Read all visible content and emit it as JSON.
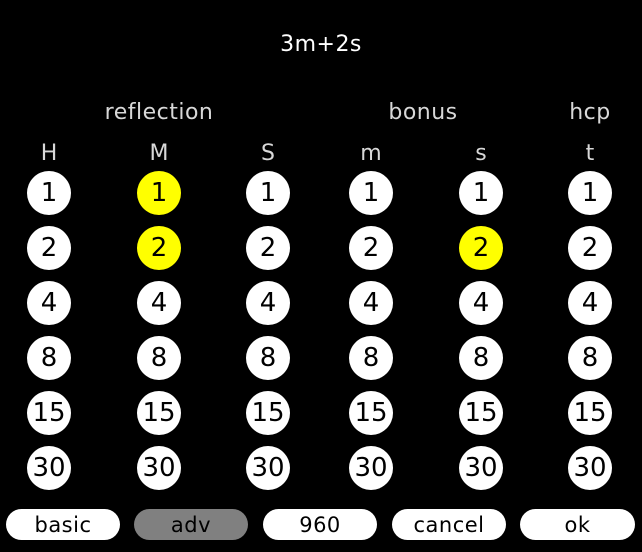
{
  "title": "3m+2s",
  "groups": [
    {
      "label": "reflection"
    },
    {
      "label": "bonus"
    },
    {
      "label": "hcp"
    }
  ],
  "columns": [
    {
      "label": "H",
      "options": [
        "1",
        "2",
        "4",
        "8",
        "15",
        "30"
      ],
      "selected": null
    },
    {
      "label": "M",
      "options": [
        "1",
        "2",
        "4",
        "8",
        "15",
        "30"
      ],
      "selected": [
        0,
        1
      ]
    },
    {
      "label": "S",
      "options": [
        "1",
        "2",
        "4",
        "8",
        "15",
        "30"
      ],
      "selected": null
    },
    {
      "label": "m",
      "options": [
        "1",
        "2",
        "4",
        "8",
        "15",
        "30"
      ],
      "selected": null
    },
    {
      "label": "s",
      "options": [
        "1",
        "2",
        "4",
        "8",
        "15",
        "30"
      ],
      "selected": [
        1
      ]
    },
    {
      "label": "t",
      "options": [
        "1",
        "2",
        "4",
        "8",
        "15",
        "30"
      ],
      "selected": null
    }
  ],
  "buttons": [
    {
      "label": "basic",
      "enabled": true
    },
    {
      "label": "adv",
      "enabled": false
    },
    {
      "label": "960",
      "enabled": true
    },
    {
      "label": "cancel",
      "enabled": true
    },
    {
      "label": "ok",
      "enabled": true
    }
  ],
  "colors": {
    "background": "#000000",
    "option": "#ffffff",
    "selected": "#ffff00",
    "disabled_button": "#808080"
  }
}
